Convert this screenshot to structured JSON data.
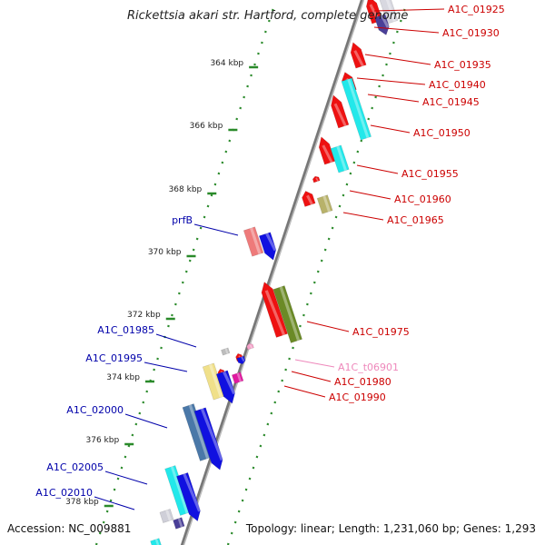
{
  "title": "Rickettsia akari str. Hartford, complete genome",
  "footer": {
    "accession": "Accession: NC_009881",
    "topology": "Topology: linear; Length: 1,231,060 bp; Genes: 1,293"
  },
  "scale_labels": [
    "364 kbp",
    "366 kbp",
    "368 kbp",
    "370 kbp",
    "372 kbp",
    "374 kbp",
    "376 kbp",
    "378 kbp"
  ],
  "colors": {
    "red": "#ee1111",
    "cyan": "#22e8ea",
    "purple": "#4a3f98",
    "blue": "#1010e0",
    "olive_light": "#b8b26a",
    "olive_dark": "#6b8a26",
    "pink": "#ee7a7a",
    "yellow": "#f0e08a",
    "steelblue": "#4a78a8",
    "magenta": "#e01aa0",
    "gray": "#9a9a9a",
    "label_right": "#cc0000",
    "label_left": "#0000aa",
    "label_trna": "#ee88bb",
    "tick_green": "#2a8a2a"
  },
  "right_labels": [
    {
      "text": "A1C_01925"
    },
    {
      "text": "A1C_01930"
    },
    {
      "text": "A1C_01935"
    },
    {
      "text": "A1C_01940"
    },
    {
      "text": "A1C_01945"
    },
    {
      "text": "A1C_01950"
    },
    {
      "text": "A1C_01955"
    },
    {
      "text": "A1C_01960"
    },
    {
      "text": "A1C_01965"
    },
    {
      "text": "A1C_01975"
    },
    {
      "text": "A1C_t06901",
      "kind": "trna"
    },
    {
      "text": "A1C_01980"
    },
    {
      "text": "A1C_01990"
    }
  ],
  "left_labels": [
    {
      "text": "prfB"
    },
    {
      "text": "A1C_01985"
    },
    {
      "text": "A1C_01995"
    },
    {
      "text": "A1C_02000"
    },
    {
      "text": "A1C_02005"
    },
    {
      "text": "A1C_02010"
    }
  ]
}
